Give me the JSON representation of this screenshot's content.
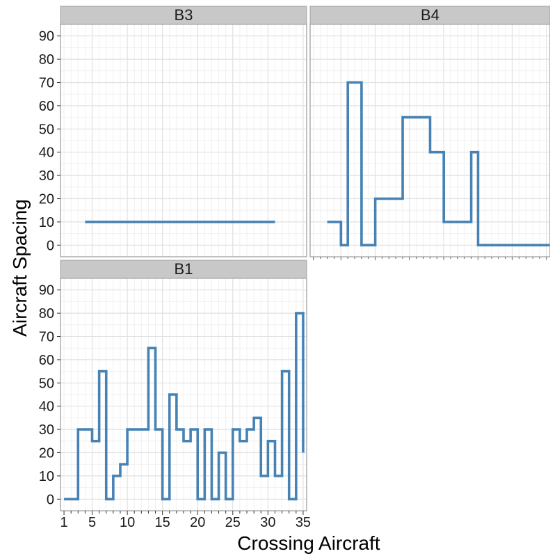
{
  "chart_data": {
    "type": "line",
    "step": true,
    "xlabel": "Crossing Aircraft",
    "ylabel": "Aircraft Spacing",
    "ylim": [
      -5,
      95
    ],
    "yticks": [
      0,
      10,
      20,
      30,
      40,
      50,
      60,
      70,
      80,
      90
    ],
    "xlim": [
      0.5,
      35.5
    ],
    "xticks": [
      1,
      5,
      10,
      15,
      20,
      25,
      30,
      35
    ],
    "xtick_labels": [
      "1",
      "5",
      "10",
      "15",
      "20",
      "25",
      "30",
      "35"
    ],
    "grid": true,
    "series_color": "#4682b4",
    "panels": [
      {
        "label": "B3",
        "x": [
          4,
          31
        ],
        "values": [
          10,
          10
        ]
      },
      {
        "label": "B4",
        "x": [
          3,
          5,
          6,
          8,
          10,
          14,
          18,
          20,
          24,
          25,
          36
        ],
        "values": [
          10,
          0,
          70,
          0,
          20,
          55,
          40,
          10,
          40,
          0,
          0
        ]
      },
      {
        "label": "B1",
        "x": [
          1,
          3,
          5,
          6,
          7,
          8,
          9,
          10,
          13,
          14,
          15,
          16,
          17,
          18,
          19,
          20,
          21,
          22,
          23,
          24,
          25,
          26,
          27,
          28,
          29,
          30,
          31,
          32,
          33,
          34,
          35,
          35
        ],
        "values": [
          0,
          30,
          25,
          55,
          0,
          10,
          15,
          30,
          65,
          30,
          0,
          45,
          30,
          25,
          30,
          0,
          30,
          0,
          20,
          0,
          30,
          25,
          30,
          35,
          10,
          25,
          10,
          55,
          0,
          80,
          20,
          20
        ]
      }
    ]
  },
  "colors": {
    "strip_bg": "#c8c8c8",
    "strip_border": "#a0a0a0",
    "panel_border": "#9a9a9a",
    "grid_major": "#e1e1e1",
    "grid_minor": "#f0f0f0",
    "series": "#4682b4"
  }
}
